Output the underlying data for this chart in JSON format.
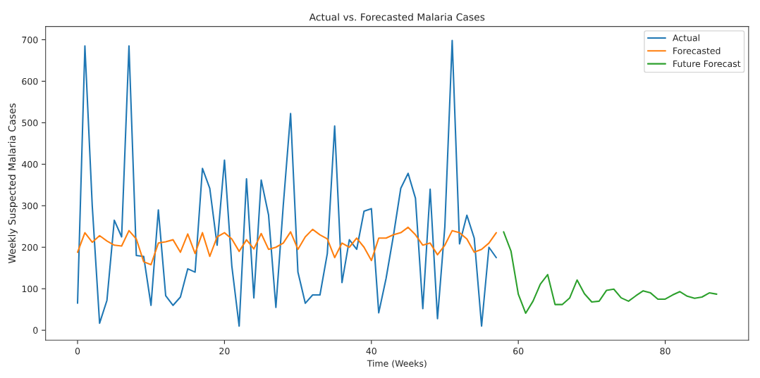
{
  "chart_data": {
    "type": "line",
    "title": "Actual vs. Forecasted Malaria Cases",
    "xlabel": "Time (Weeks)",
    "ylabel": "Weekly Suspected Malaria Cases",
    "xlim": [
      -4.35,
      91.35
    ],
    "ylim": [
      -24,
      732
    ],
    "xticks": [
      0,
      20,
      40,
      60,
      80
    ],
    "yticks": [
      0,
      100,
      200,
      300,
      400,
      500,
      600,
      700
    ],
    "grid": false,
    "legend": "top right",
    "series": [
      {
        "name": "Actual",
        "color": "#1f77b4",
        "x": [
          0,
          1,
          2,
          3,
          4,
          5,
          6,
          7,
          8,
          9,
          10,
          11,
          12,
          13,
          14,
          15,
          16,
          17,
          18,
          19,
          20,
          21,
          22,
          23,
          24,
          25,
          26,
          27,
          28,
          29,
          30,
          31,
          32,
          33,
          34,
          35,
          36,
          37,
          38,
          39,
          40,
          41,
          42,
          43,
          44,
          45,
          46,
          47,
          48,
          49,
          50,
          51,
          52,
          53,
          54,
          55,
          56,
          57
        ],
        "values": [
          65,
          685,
          300,
          17,
          72,
          265,
          225,
          685,
          180,
          178,
          60,
          290,
          83,
          60,
          80,
          148,
          140,
          390,
          342,
          205,
          410,
          155,
          10,
          365,
          78,
          362,
          278,
          55,
          300,
          522,
          140,
          65,
          85,
          85,
          185,
          492,
          115,
          218,
          195,
          287,
          293,
          42,
          125,
          228,
          342,
          378,
          318,
          52,
          340,
          28,
          250,
          698,
          208,
          277,
          222,
          10,
          200,
          175
        ]
      },
      {
        "name": "Forecasted",
        "color": "#ff7f0e",
        "x": [
          0,
          1,
          2,
          3,
          4,
          5,
          6,
          7,
          8,
          9,
          10,
          11,
          12,
          13,
          14,
          15,
          16,
          17,
          18,
          19,
          20,
          21,
          22,
          23,
          24,
          25,
          26,
          27,
          28,
          29,
          30,
          31,
          32,
          33,
          34,
          35,
          36,
          37,
          38,
          39,
          40,
          41,
          42,
          43,
          44,
          45,
          46,
          47,
          48,
          49,
          50,
          51,
          52,
          53,
          54,
          55,
          56,
          57
        ],
        "values": [
          188,
          235,
          212,
          228,
          215,
          205,
          203,
          240,
          220,
          165,
          158,
          210,
          213,
          218,
          188,
          232,
          185,
          235,
          178,
          225,
          235,
          220,
          190,
          218,
          196,
          233,
          195,
          200,
          210,
          237,
          195,
          225,
          243,
          230,
          220,
          175,
          210,
          200,
          222,
          200,
          168,
          222,
          222,
          230,
          235,
          248,
          230,
          205,
          210,
          182,
          205,
          240,
          235,
          220,
          188,
          195,
          210,
          235
        ]
      },
      {
        "name": "Future Forecast",
        "color": "#2ca02c",
        "x": [
          58,
          59,
          60,
          61,
          62,
          63,
          64,
          65,
          66,
          67,
          68,
          69,
          70,
          71,
          72,
          73,
          74,
          75,
          76,
          77,
          78,
          79,
          80,
          81,
          82,
          83,
          84,
          85,
          86,
          87
        ],
        "values": [
          237,
          191,
          87,
          41,
          70,
          111,
          134,
          62,
          62,
          78,
          121,
          88,
          68,
          70,
          96,
          99,
          78,
          70,
          83,
          95,
          90,
          75,
          75,
          85,
          93,
          82,
          77,
          80,
          90,
          87
        ]
      }
    ]
  }
}
